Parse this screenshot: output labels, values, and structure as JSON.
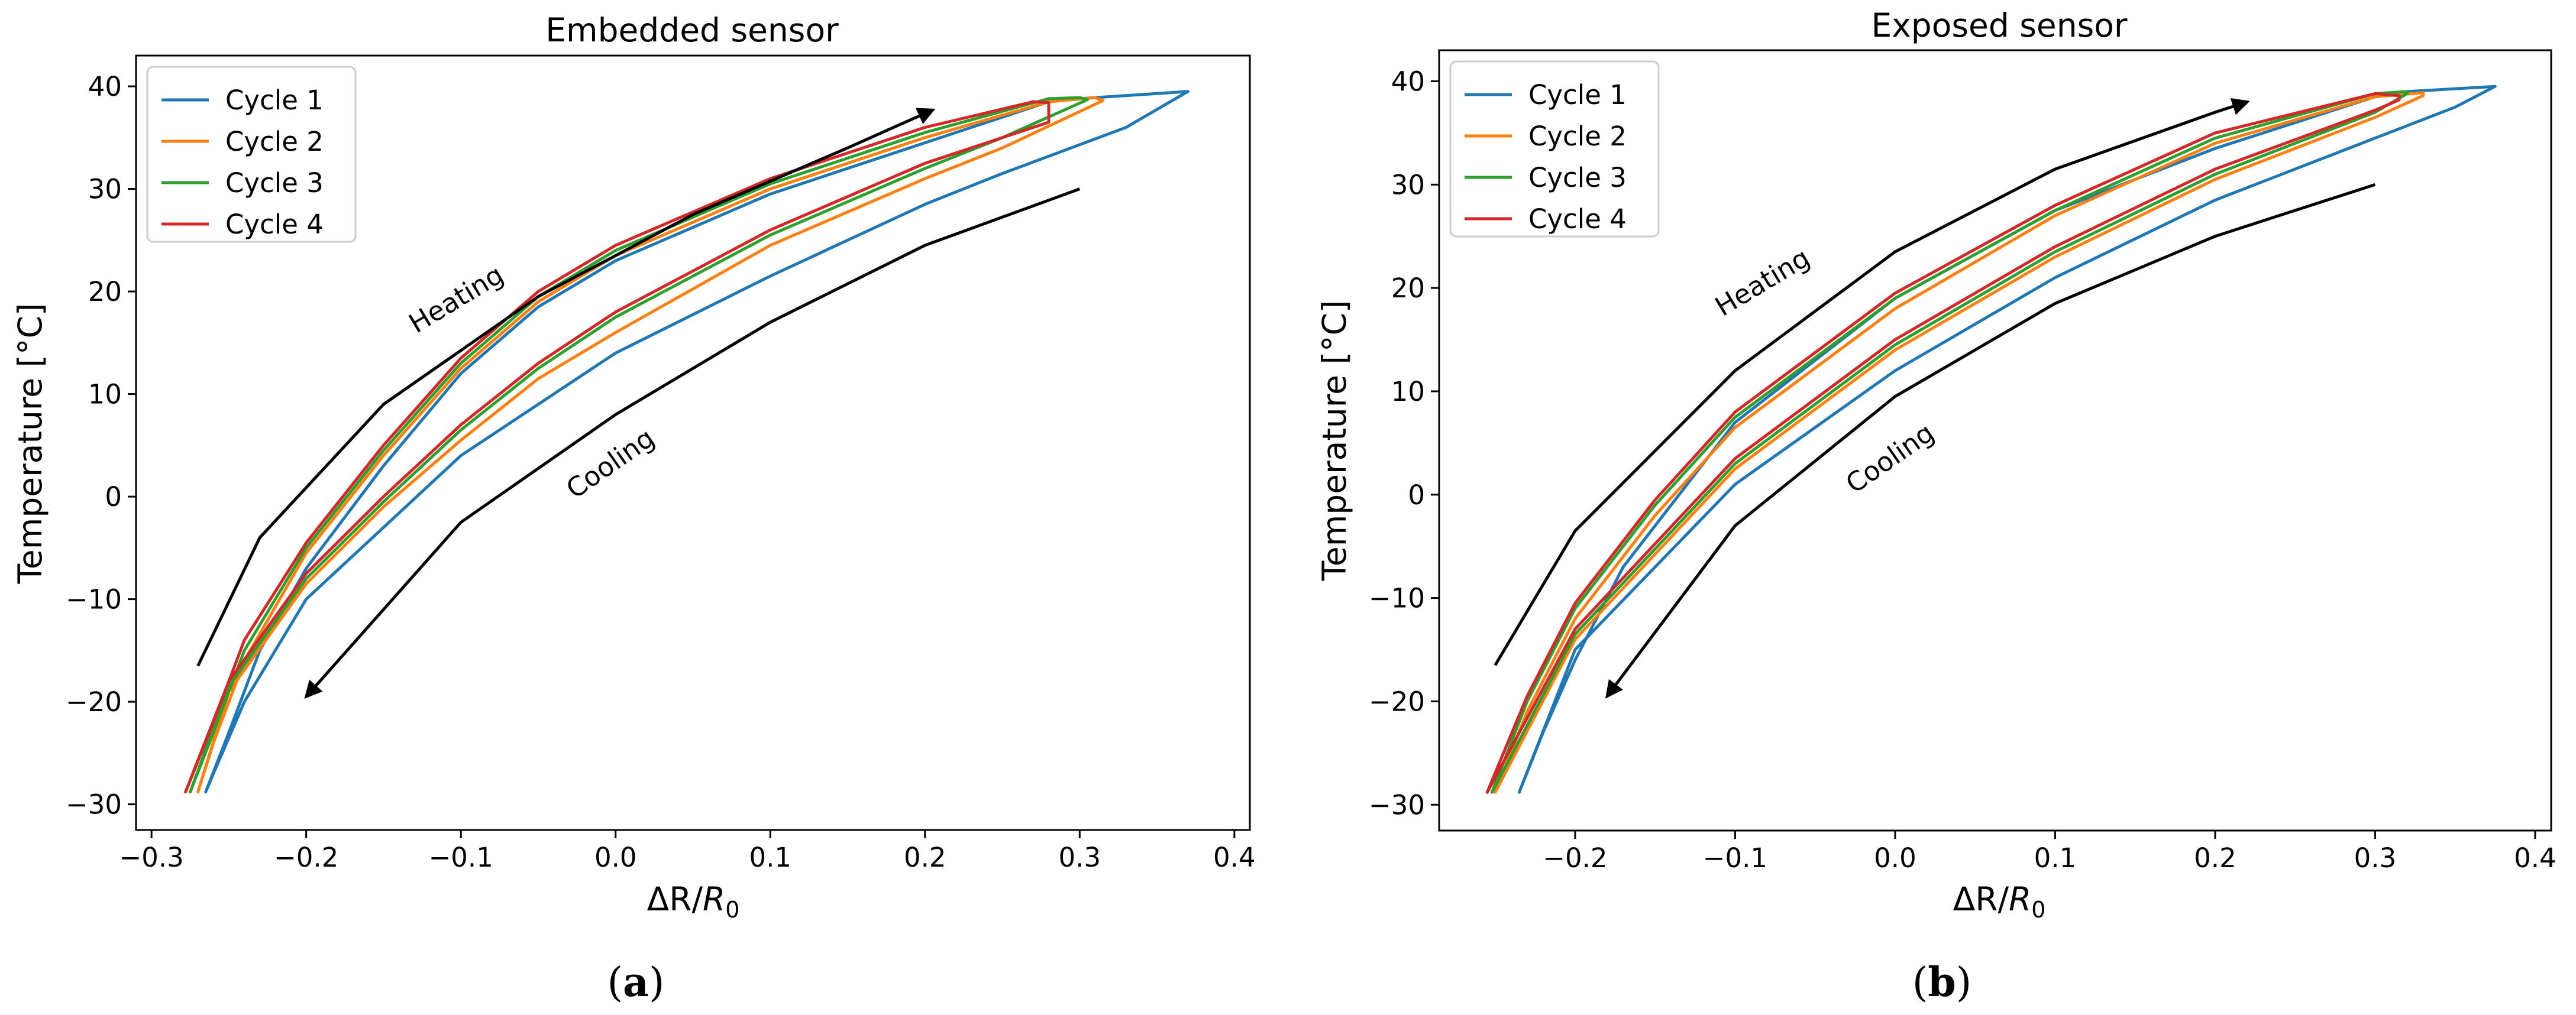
{
  "figure": {
    "panels": [
      {
        "caption_letter": "a",
        "caption_open": "(",
        "caption_close": ")"
      },
      {
        "caption_letter": "b",
        "caption_open": "(",
        "caption_close": ")"
      }
    ]
  },
  "chart_data": [
    {
      "type": "line",
      "title": "Embedded sensor",
      "xlabel_main": "ΔR/",
      "xlabel_var": "R",
      "xlabel_sub": "0",
      "ylabel": "Temperature [°C]",
      "xlim": [
        -0.31,
        0.41
      ],
      "ylim": [
        -32.5,
        43
      ],
      "xticks": [
        -0.3,
        -0.2,
        -0.1,
        0.0,
        0.1,
        0.2,
        0.3,
        0.4
      ],
      "xtick_labels": [
        "−0.3",
        "−0.2",
        "−0.1",
        "0.0",
        "0.1",
        "0.2",
        "0.3",
        "0.4"
      ],
      "yticks": [
        -30,
        -20,
        -10,
        0,
        10,
        20,
        30,
        40
      ],
      "ytick_labels": [
        "−30",
        "−20",
        "−10",
        "0",
        "10",
        "20",
        "30",
        "40"
      ],
      "legend": {
        "position": "top-left",
        "entries": [
          "Cycle 1",
          "Cycle 2",
          "Cycle 3",
          "Cycle 4"
        ]
      },
      "series": [
        {
          "name": "Cycle 1",
          "color": "#1f77b4",
          "heating": [
            [
              -0.265,
              -28.8
            ],
            [
              -0.25,
              -23
            ],
            [
              -0.23,
              -15
            ],
            [
              -0.2,
              -7
            ],
            [
              -0.15,
              3
            ],
            [
              -0.1,
              12
            ],
            [
              -0.05,
              18.5
            ],
            [
              0.0,
              23
            ],
            [
              0.1,
              29.5
            ],
            [
              0.2,
              34.5
            ],
            [
              0.28,
              38.5
            ],
            [
              0.3,
              38.8
            ]
          ],
          "cooling": [
            [
              0.37,
              39.5
            ],
            [
              0.33,
              36
            ],
            [
              0.25,
              31.5
            ],
            [
              0.2,
              28.5
            ],
            [
              0.1,
              21.5
            ],
            [
              0.0,
              14
            ],
            [
              -0.1,
              4
            ],
            [
              -0.2,
              -10
            ],
            [
              -0.24,
              -20
            ],
            [
              -0.26,
              -27
            ],
            [
              -0.265,
              -28.8
            ]
          ]
        },
        {
          "name": "Cycle 2",
          "color": "#ff7f0e",
          "heating": [
            [
              -0.27,
              -28.8
            ],
            [
              -0.26,
              -24
            ],
            [
              -0.24,
              -16
            ],
            [
              -0.2,
              -5.5
            ],
            [
              -0.15,
              4
            ],
            [
              -0.1,
              12.5
            ],
            [
              -0.05,
              19
            ],
            [
              0.0,
              23.5
            ],
            [
              0.1,
              30
            ],
            [
              0.2,
              35
            ],
            [
              0.28,
              38.5
            ],
            [
              0.31,
              38.9
            ]
          ],
          "cooling": [
            [
              0.315,
              38.6
            ],
            [
              0.25,
              34
            ],
            [
              0.2,
              31
            ],
            [
              0.1,
              24.5
            ],
            [
              0.0,
              16
            ],
            [
              -0.05,
              11.5
            ],
            [
              -0.1,
              5.5
            ],
            [
              -0.15,
              -1
            ],
            [
              -0.2,
              -8.5
            ],
            [
              -0.25,
              -19
            ],
            [
              -0.27,
              -28.8
            ]
          ]
        },
        {
          "name": "Cycle 3",
          "color": "#2ca02c",
          "heating": [
            [
              -0.275,
              -28.8
            ],
            [
              -0.26,
              -23
            ],
            [
              -0.24,
              -15
            ],
            [
              -0.2,
              -5
            ],
            [
              -0.15,
              4.5
            ],
            [
              -0.1,
              13
            ],
            [
              -0.05,
              19.5
            ],
            [
              0.0,
              24
            ],
            [
              0.1,
              30.5
            ],
            [
              0.2,
              35.5
            ],
            [
              0.28,
              38.8
            ],
            [
              0.3,
              38.9
            ]
          ],
          "cooling": [
            [
              0.305,
              38.7
            ],
            [
              0.25,
              35
            ],
            [
              0.2,
              32
            ],
            [
              0.1,
              25.5
            ],
            [
              0.0,
              17.5
            ],
            [
              -0.05,
              12.5
            ],
            [
              -0.1,
              6.5
            ],
            [
              -0.15,
              -0.5
            ],
            [
              -0.2,
              -8
            ],
            [
              -0.25,
              -18.5
            ],
            [
              -0.275,
              -28.8
            ]
          ]
        },
        {
          "name": "Cycle 4",
          "color": "#d62728",
          "heating": [
            [
              -0.278,
              -28.8
            ],
            [
              -0.26,
              -22
            ],
            [
              -0.24,
              -14
            ],
            [
              -0.2,
              -4.5
            ],
            [
              -0.15,
              5
            ],
            [
              -0.1,
              13.5
            ],
            [
              -0.05,
              20
            ],
            [
              0.0,
              24.5
            ],
            [
              0.1,
              31
            ],
            [
              0.2,
              36
            ],
            [
              0.27,
              38.5
            ],
            [
              0.28,
              38.4
            ]
          ],
          "cooling": [
            [
              0.28,
              36.5
            ],
            [
              0.25,
              35
            ],
            [
              0.2,
              32.5
            ],
            [
              0.1,
              26
            ],
            [
              0.0,
              18
            ],
            [
              -0.05,
              13
            ],
            [
              -0.1,
              7
            ],
            [
              -0.15,
              0
            ],
            [
              -0.2,
              -7.5
            ],
            [
              -0.25,
              -18
            ],
            [
              -0.278,
              -28.8
            ]
          ]
        }
      ],
      "annotations": [
        {
          "text": "Heating",
          "x": -0.1,
          "y": 18.5,
          "rotation": -31,
          "arrow": [
            [
              -0.27,
              -16.5
            ],
            [
              -0.23,
              -4
            ],
            [
              -0.15,
              9
            ],
            [
              -0.05,
              19.5
            ],
            [
              0.05,
              27.5
            ],
            [
              0.15,
              34
            ],
            [
              0.205,
              37.7
            ]
          ]
        },
        {
          "text": "Cooling",
          "x": 0.0,
          "y": 2.5,
          "rotation": -35,
          "arrow": [
            [
              0.3,
              30
            ],
            [
              0.2,
              24.5
            ],
            [
              0.1,
              17
            ],
            [
              0.0,
              8
            ],
            [
              -0.1,
              -2.5
            ],
            [
              -0.2,
              -19.5
            ]
          ]
        }
      ]
    },
    {
      "type": "line",
      "title": "Exposed sensor",
      "xlabel_main": "ΔR/",
      "xlabel_var": "R",
      "xlabel_sub": "0",
      "ylabel": "Temperature [°C]",
      "xlim": [
        -0.285,
        0.41
      ],
      "ylim": [
        -32.5,
        43
      ],
      "xticks": [
        -0.2,
        -0.1,
        0.0,
        0.1,
        0.2,
        0.3,
        0.4
      ],
      "xtick_labels": [
        "−0.2",
        "−0.1",
        "0.0",
        "0.1",
        "0.2",
        "0.3",
        "0.4"
      ],
      "yticks": [
        -30,
        -20,
        -10,
        0,
        10,
        20,
        30,
        40
      ],
      "ytick_labels": [
        "−30",
        "−20",
        "−10",
        "0",
        "10",
        "20",
        "30",
        "40"
      ],
      "legend": {
        "position": "top-left",
        "entries": [
          "Cycle 1",
          "Cycle 2",
          "Cycle 3",
          "Cycle 4"
        ]
      },
      "series": [
        {
          "name": "Cycle 1",
          "color": "#1f77b4",
          "heating": [
            [
              -0.235,
              -28.8
            ],
            [
              -0.22,
              -23
            ],
            [
              -0.2,
              -16
            ],
            [
              -0.17,
              -7
            ],
            [
              -0.1,
              7
            ],
            [
              0.0,
              19
            ],
            [
              0.1,
              27.5
            ],
            [
              0.2,
              33.5
            ],
            [
              0.3,
              38.5
            ],
            [
              0.32,
              39
            ]
          ],
          "cooling": [
            [
              0.375,
              39.5
            ],
            [
              0.35,
              37.5
            ],
            [
              0.3,
              34.5
            ],
            [
              0.2,
              28.5
            ],
            [
              0.1,
              21
            ],
            [
              0.0,
              12
            ],
            [
              -0.1,
              1
            ],
            [
              -0.2,
              -15
            ],
            [
              -0.235,
              -28.8
            ]
          ]
        },
        {
          "name": "Cycle 2",
          "color": "#ff7f0e",
          "heating": [
            [
              -0.25,
              -28.8
            ],
            [
              -0.23,
              -21
            ],
            [
              -0.2,
              -12
            ],
            [
              -0.15,
              -2
            ],
            [
              -0.1,
              6.5
            ],
            [
              0.0,
              18
            ],
            [
              0.1,
              27
            ],
            [
              0.2,
              34
            ],
            [
              0.3,
              38.5
            ],
            [
              0.33,
              38.9
            ]
          ],
          "cooling": [
            [
              0.33,
              38.6
            ],
            [
              0.3,
              36.5
            ],
            [
              0.2,
              30.5
            ],
            [
              0.1,
              23
            ],
            [
              0.0,
              14
            ],
            [
              -0.1,
              2.5
            ],
            [
              -0.2,
              -14
            ],
            [
              -0.25,
              -28.8
            ]
          ]
        },
        {
          "name": "Cycle 3",
          "color": "#2ca02c",
          "heating": [
            [
              -0.252,
              -28.8
            ],
            [
              -0.23,
              -20
            ],
            [
              -0.2,
              -11
            ],
            [
              -0.15,
              -1
            ],
            [
              -0.1,
              7.5
            ],
            [
              0.0,
              19
            ],
            [
              0.1,
              27.5
            ],
            [
              0.2,
              34.5
            ],
            [
              0.3,
              38.8
            ],
            [
              0.32,
              39
            ]
          ],
          "cooling": [
            [
              0.32,
              38.8
            ],
            [
              0.3,
              37
            ],
            [
              0.2,
              31
            ],
            [
              0.1,
              23.5
            ],
            [
              0.0,
              14.5
            ],
            [
              -0.1,
              3
            ],
            [
              -0.2,
              -13.5
            ],
            [
              -0.252,
              -28.8
            ]
          ]
        },
        {
          "name": "Cycle 4",
          "color": "#d62728",
          "heating": [
            [
              -0.255,
              -28.8
            ],
            [
              -0.23,
              -19.5
            ],
            [
              -0.2,
              -10.5
            ],
            [
              -0.15,
              -0.5
            ],
            [
              -0.1,
              8
            ],
            [
              0.0,
              19.5
            ],
            [
              0.1,
              28
            ],
            [
              0.2,
              35
            ],
            [
              0.3,
              38.8
            ],
            [
              0.315,
              38.6
            ]
          ],
          "cooling": [
            [
              0.315,
              38.2
            ],
            [
              0.3,
              37.2
            ],
            [
              0.2,
              31.5
            ],
            [
              0.1,
              24
            ],
            [
              0.0,
              15
            ],
            [
              -0.1,
              3.5
            ],
            [
              -0.2,
              -13
            ],
            [
              -0.255,
              -28.8
            ]
          ]
        }
      ],
      "annotations": [
        {
          "text": "Heating",
          "x": -0.08,
          "y": 19.8,
          "rotation": -31,
          "arrow": [
            [
              -0.25,
              -16.5
            ],
            [
              -0.2,
              -3.5
            ],
            [
              -0.1,
              12
            ],
            [
              0.0,
              23.5
            ],
            [
              0.1,
              31.5
            ],
            [
              0.2,
              37
            ],
            [
              0.22,
              38
            ]
          ]
        },
        {
          "text": "Cooling",
          "x": 0.0,
          "y": 2.8,
          "rotation": -35,
          "arrow": [
            [
              0.3,
              30
            ],
            [
              0.2,
              25
            ],
            [
              0.1,
              18.5
            ],
            [
              0.0,
              9.5
            ],
            [
              -0.1,
              -3
            ],
            [
              -0.18,
              -19.5
            ]
          ]
        }
      ]
    }
  ]
}
